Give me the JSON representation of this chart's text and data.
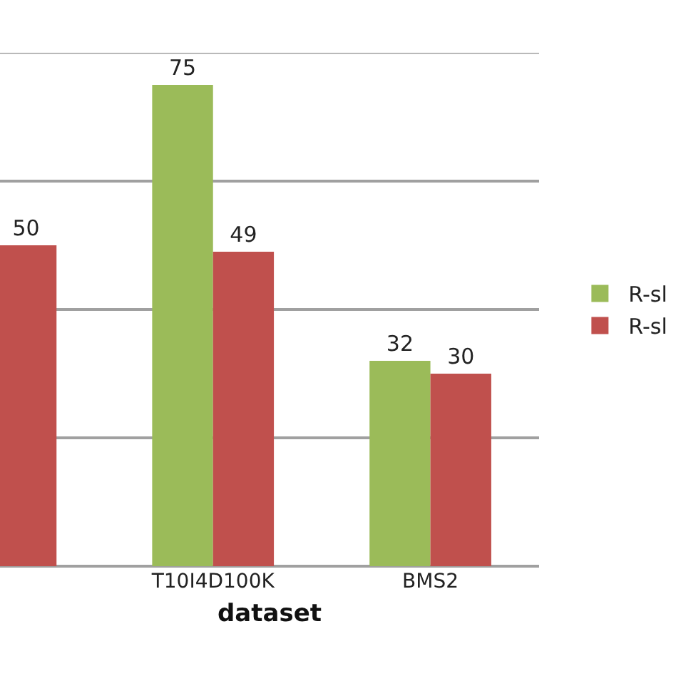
{
  "chart_data": {
    "type": "bar",
    "xlabel": "dataset",
    "categories": [
      null,
      "T10I4D100K",
      "BMS2"
    ],
    "series": [
      {
        "name": "R-sl",
        "color": "#9bbb59",
        "values": [
          null,
          75,
          32
        ]
      },
      {
        "name": "R-sl",
        "color": "#c0504d",
        "values": [
          50,
          49,
          30
        ]
      }
    ],
    "ylim": [
      0,
      80
    ],
    "yticks": [
      0,
      20,
      40,
      60,
      80
    ],
    "tick_labels": "x",
    "grid": "y",
    "legend": "right",
    "data_labels": true
  }
}
